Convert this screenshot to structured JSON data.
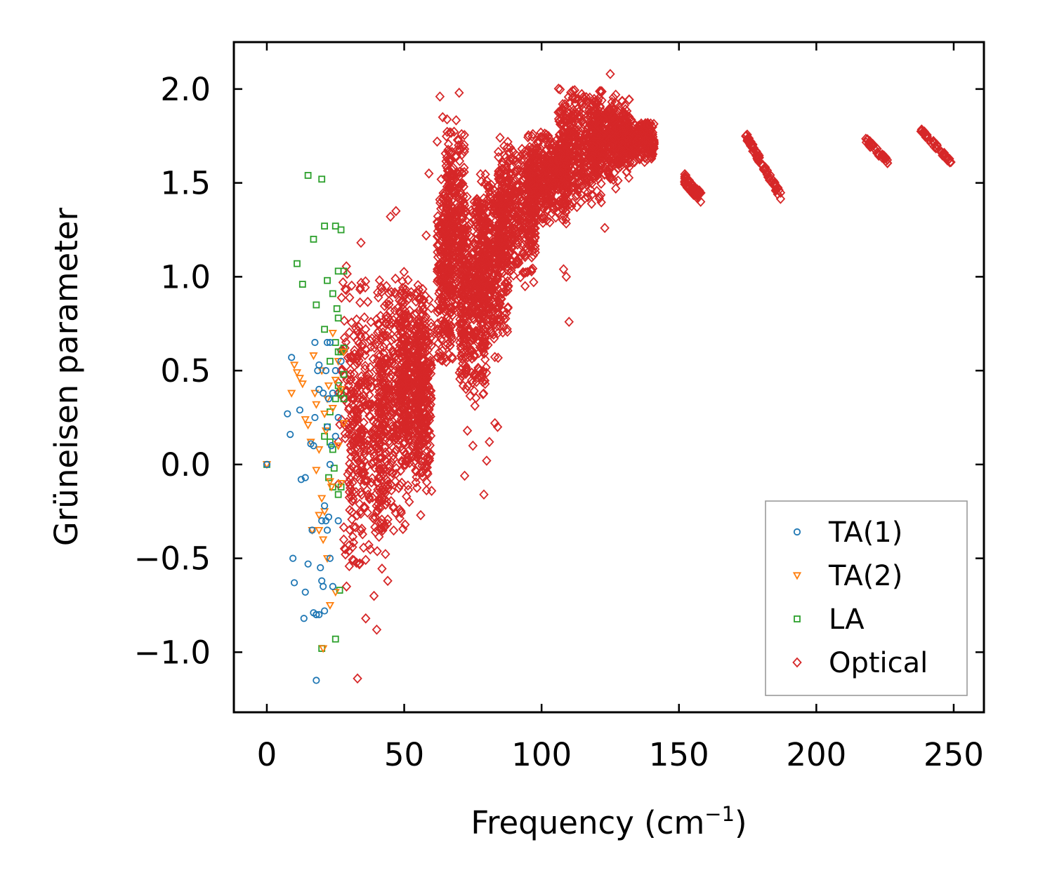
{
  "chart_data": {
    "type": "scatter",
    "title": "",
    "xlabel": "Frequency (cm",
    "xlabel_sup": "−1",
    "xlabel_tail": ")",
    "ylabel": "Grüneisen parameter",
    "xlim": [
      -12,
      261
    ],
    "ylim": [
      -1.32,
      2.25
    ],
    "x_ticks": [
      0,
      50,
      100,
      150,
      200,
      250
    ],
    "x_tick_labels": [
      "0",
      "50",
      "100",
      "150",
      "200",
      "250"
    ],
    "y_ticks": [
      -1.0,
      -0.5,
      0.0,
      0.5,
      1.0,
      1.5,
      2.0
    ],
    "y_tick_labels": [
      "−1.0",
      "−0.5",
      "0.0",
      "0.5",
      "1.0",
      "1.5",
      "2.0"
    ],
    "grid": false,
    "legend_position": "bottom-right",
    "series": [
      {
        "name": "TA(1)",
        "marker": "circle",
        "color": "#1f77b4",
        "points": [
          [
            0,
            0
          ],
          [
            7.5,
            0.27
          ],
          [
            8.5,
            0.16
          ],
          [
            9,
            0.57
          ],
          [
            9.5,
            -0.5
          ],
          [
            10,
            -0.63
          ],
          [
            12,
            0.29
          ],
          [
            12.5,
            -0.08
          ],
          [
            13.5,
            -0.82
          ],
          [
            14,
            -0.07
          ],
          [
            14,
            -0.68
          ],
          [
            15,
            -0.53
          ],
          [
            16,
            0.11
          ],
          [
            16.5,
            -0.35
          ],
          [
            17,
            -0.79
          ],
          [
            17,
            0.1
          ],
          [
            17.5,
            0.65
          ],
          [
            17.5,
            0.25
          ],
          [
            18,
            -0.8
          ],
          [
            18,
            -0.8
          ],
          [
            18,
            -1.15
          ],
          [
            18.5,
            0.5
          ],
          [
            19,
            0.53
          ],
          [
            19,
            0.4
          ],
          [
            19,
            -0.8
          ],
          [
            19.5,
            -0.55
          ],
          [
            20,
            -0.3
          ],
          [
            20,
            -0.62
          ],
          [
            20.5,
            -0.65
          ],
          [
            20.5,
            0.38
          ],
          [
            21,
            -0.78
          ],
          [
            21,
            -0.22
          ],
          [
            21.5,
            0.5
          ],
          [
            21.5,
            -0.3
          ],
          [
            22,
            -0.35
          ],
          [
            22,
            0.65
          ],
          [
            22,
            0.2
          ],
          [
            22.5,
            0.35
          ],
          [
            22.5,
            -0.28
          ],
          [
            23,
            0.65
          ],
          [
            23,
            0.0
          ],
          [
            23,
            -0.5
          ],
          [
            23.5,
            0.1
          ],
          [
            24,
            0.38
          ],
          [
            24,
            -0.65
          ],
          [
            25,
            0.15
          ],
          [
            25,
            0.5
          ],
          [
            26,
            0.25
          ],
          [
            26,
            -0.3
          ],
          [
            27,
            0.55
          ]
        ]
      },
      {
        "name": "TA(2)",
        "marker": "triangle-down",
        "color": "#ff7f0e",
        "points": [
          [
            0,
            0
          ],
          [
            9,
            0.38
          ],
          [
            10,
            0.53
          ],
          [
            11,
            0.49
          ],
          [
            12,
            0.46
          ],
          [
            13,
            0.43
          ],
          [
            14,
            0.24
          ],
          [
            15,
            0.21
          ],
          [
            16,
            0.12
          ],
          [
            16.5,
            -0.35
          ],
          [
            17,
            0.58
          ],
          [
            17.5,
            0.38
          ],
          [
            18,
            0.32
          ],
          [
            18,
            -0.03
          ],
          [
            19,
            0.08
          ],
          [
            19,
            -0.27
          ],
          [
            20,
            0.5
          ],
          [
            20,
            -0.18
          ],
          [
            20.5,
            -0.4
          ],
          [
            21,
            0.27
          ],
          [
            21,
            -0.25
          ],
          [
            21.5,
            0.18
          ],
          [
            22,
            0.35
          ],
          [
            22,
            -0.5
          ],
          [
            22.5,
            0.42
          ],
          [
            23,
            -0.09
          ],
          [
            23,
            -0.75
          ],
          [
            23.5,
            -0.12
          ],
          [
            24,
            0.7
          ],
          [
            24,
            0.3
          ],
          [
            25,
            0.45
          ],
          [
            25,
            -0.68
          ],
          [
            26,
            0.55
          ],
          [
            26,
            0.1
          ],
          [
            27,
            0.4
          ],
          [
            27,
            -0.1
          ],
          [
            28,
            0.22
          ],
          [
            28,
            0.6
          ],
          [
            20.5,
            -0.98
          ],
          [
            19,
            -0.35
          ]
        ]
      },
      {
        "name": "LA",
        "marker": "square",
        "color": "#2ca02c",
        "points": [
          [
            0,
            0
          ],
          [
            11,
            1.07
          ],
          [
            13,
            0.96
          ],
          [
            15,
            1.54
          ],
          [
            17,
            1.2
          ],
          [
            18,
            0.85
          ],
          [
            20,
            1.52
          ],
          [
            21,
            1.27
          ],
          [
            21,
            0.72
          ],
          [
            22,
            0.2
          ],
          [
            22.5,
            -0.07
          ],
          [
            23,
            0.55
          ],
          [
            23,
            0.28
          ],
          [
            24,
            0.91
          ],
          [
            24,
            0.08
          ],
          [
            24.5,
            -0.02
          ],
          [
            25,
            1.27
          ],
          [
            25,
            0.65
          ],
          [
            25,
            0.35
          ],
          [
            25,
            -0.93
          ],
          [
            25.5,
            0.83
          ],
          [
            26,
            1.03
          ],
          [
            26,
            0.6
          ],
          [
            26,
            0.42
          ],
          [
            26,
            -0.16
          ],
          [
            26.5,
            -0.67
          ],
          [
            27,
            1.25
          ],
          [
            27,
            0.6
          ],
          [
            27,
            0.38
          ],
          [
            28,
            1.03
          ],
          [
            28,
            0.62
          ],
          [
            28,
            0.48
          ],
          [
            28,
            0.35
          ],
          [
            21,
            0.15
          ],
          [
            20,
            -0.98
          ],
          [
            23,
            0.12
          ],
          [
            24,
            -0.12
          ],
          [
            27,
            -0.12
          ],
          [
            22,
            0.98
          ],
          [
            26,
            0.78
          ]
        ]
      },
      {
        "name": "Optical",
        "marker": "diamond",
        "color": "#d62728",
        "clusters": [
          {
            "x_range": [
              26,
              36
            ],
            "y_range": [
              -0.7,
              1.4
            ],
            "count": 120
          },
          {
            "x_range": [
              30,
              44
            ],
            "y_range": [
              -0.6,
              0.9
            ],
            "count": 300
          },
          {
            "x_range": [
              40,
              52
            ],
            "y_range": [
              -0.4,
              1.1
            ],
            "count": 350
          },
          {
            "x_range": [
              48,
              58
            ],
            "y_range": [
              -0.1,
              1.0
            ],
            "count": 320
          },
          {
            "x_range": [
              54,
              60
            ],
            "y_range": [
              -0.2,
              0.95
            ],
            "count": 220
          },
          {
            "x_range": [
              62,
              68
            ],
            "y_range": [
              0.45,
              1.6
            ],
            "count": 260
          },
          {
            "x_range": [
              65,
              72
            ],
            "y_range": [
              0.7,
              1.9
            ],
            "count": 260
          },
          {
            "x_range": [
              70,
              80
            ],
            "y_range": [
              0.3,
              1.45
            ],
            "count": 380
          },
          {
            "x_range": [
              76,
              88
            ],
            "y_range": [
              0.55,
              1.6
            ],
            "count": 420
          },
          {
            "x_range": [
              84,
              98
            ],
            "y_range": [
              0.95,
              1.75
            ],
            "count": 420
          },
          {
            "x_range": [
              95,
              110
            ],
            "y_range": [
              1.25,
              1.8
            ],
            "count": 400
          },
          {
            "x_range": [
              106,
              122
            ],
            "y_range": [
              1.35,
              2.05
            ],
            "count": 450
          },
          {
            "x_range": [
              118,
              132
            ],
            "y_range": [
              1.5,
              1.98
            ],
            "count": 380
          },
          {
            "x_range": [
              128,
              141
            ],
            "y_range": [
              1.6,
              1.85
            ],
            "count": 260
          }
        ],
        "bands": [
          {
            "x": [
              152,
              158
            ],
            "y": [
              1.52,
              1.42
            ],
            "width": 0.06,
            "count": 70
          },
          {
            "x": [
              174,
              187
            ],
            "y": [
              1.76,
              1.43
            ],
            "width": 0.04,
            "count": 80
          },
          {
            "x": [
              218,
              226
            ],
            "y": [
              1.73,
              1.61
            ],
            "width": 0.03,
            "count": 40
          },
          {
            "x": [
              238,
              249
            ],
            "y": [
              1.78,
              1.61
            ],
            "width": 0.03,
            "count": 45
          }
        ],
        "outliers": [
          [
            33,
            -1.14
          ],
          [
            36,
            -0.82
          ],
          [
            40,
            -0.88
          ],
          [
            39,
            -0.7
          ],
          [
            44,
            -0.62
          ],
          [
            45,
            1.32
          ],
          [
            47,
            1.35
          ],
          [
            56,
            -0.27
          ],
          [
            58,
            1.22
          ],
          [
            59,
            1.55
          ],
          [
            62,
            1.72
          ],
          [
            63,
            1.96
          ],
          [
            64,
            1.85
          ],
          [
            70,
            1.98
          ],
          [
            72,
            -0.06
          ],
          [
            73,
            0.18
          ],
          [
            75,
            0.1
          ],
          [
            79,
            -0.16
          ],
          [
            80,
            0.02
          ],
          [
            81,
            0.12
          ],
          [
            83,
            0.22
          ],
          [
            84,
            0.2
          ],
          [
            110,
            0.76
          ],
          [
            94,
            0.95
          ],
          [
            108,
            1.04
          ],
          [
            109,
            1.0
          ],
          [
            101,
            1.33
          ],
          [
            103,
            1.29
          ],
          [
            125,
            2.08
          ],
          [
            127,
            1.47
          ],
          [
            123,
            1.26
          ],
          [
            30,
            -0.43
          ],
          [
            28,
            -0.4
          ],
          [
            29,
            -0.65
          ]
        ]
      }
    ]
  }
}
